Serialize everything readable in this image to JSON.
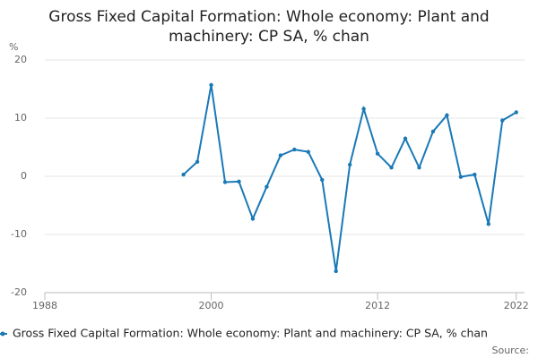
{
  "chart_data": {
    "type": "line",
    "title": "Gross Fixed Capital Formation: Whole economy: Plant and machinery: CP SA, % chan",
    "y_label": "%",
    "source": "Source:",
    "x": [
      1998,
      1999,
      2000,
      2001,
      2002,
      2003,
      2004,
      2005,
      2006,
      2007,
      2008,
      2009,
      2010,
      2011,
      2012,
      2013,
      2014,
      2015,
      2016,
      2017,
      2018,
      2019,
      2020,
      2021,
      2022
    ],
    "series": [
      {
        "name": "Gross Fixed Capital Formation: Whole economy: Plant and machinery: CP SA, % chan",
        "color": "#1a79b7",
        "values": [
          0.3,
          2.5,
          15.7,
          -1.0,
          -0.9,
          -7.3,
          -1.8,
          3.6,
          4.6,
          4.2,
          -0.6,
          -16.3,
          2.0,
          11.6,
          3.9,
          1.5,
          6.5,
          1.5,
          7.7,
          10.5,
          -0.1,
          0.3,
          -8.2,
          9.6,
          11.0
        ]
      }
    ],
    "xlim": [
      1988,
      2022.6
    ],
    "xticks": [
      1988,
      2000,
      2012,
      2022
    ],
    "ylim": [
      -20,
      20
    ],
    "yticks": [
      -20,
      -10,
      0,
      10,
      20
    ],
    "grid": true
  }
}
